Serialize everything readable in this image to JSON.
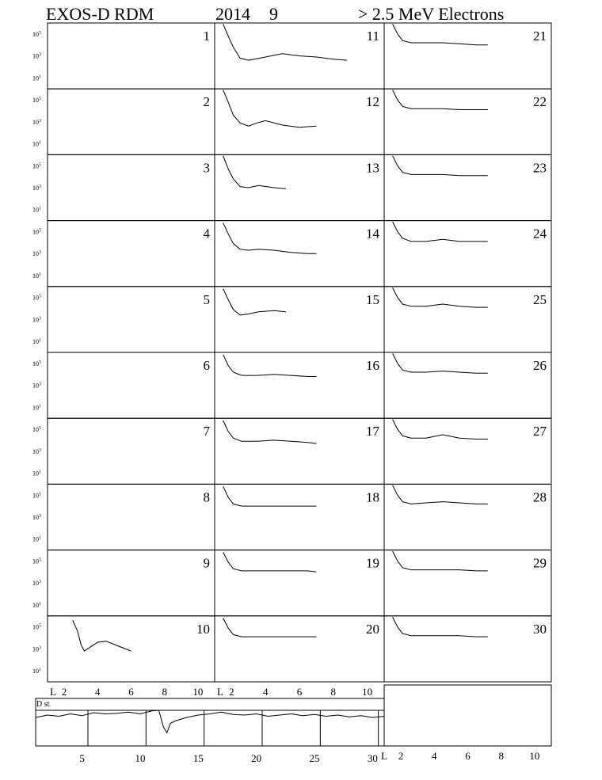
{
  "title": {
    "instrument": "EXOS-D RDM",
    "year": "2014",
    "month": "9",
    "particle": "> 2.5  MeV Electrons"
  },
  "chart_data": {
    "type": "line",
    "panel_grid": {
      "columns": 3,
      "rows": 10,
      "day_order": "column-major"
    },
    "days": [
      1,
      2,
      3,
      4,
      5,
      6,
      7,
      8,
      9,
      10,
      11,
      12,
      13,
      14,
      15,
      16,
      17,
      18,
      19,
      20,
      21,
      22,
      23,
      24,
      25,
      26,
      27,
      28,
      29,
      30
    ],
    "y_axis": {
      "scale": "log",
      "ticks": [
        {
          "base": "10",
          "exp": "5"
        },
        {
          "base": "10",
          "exp": "3"
        },
        {
          "base": "10",
          "exp": "1"
        }
      ],
      "ylim_exp": [
        0,
        6
      ]
    },
    "x_axis": {
      "label": "L",
      "ticks": [
        "2",
        "4",
        "6",
        "8",
        "10"
      ],
      "xlim": [
        1,
        11
      ]
    },
    "profiles": {
      "d1": [],
      "d2": [],
      "d3": [],
      "d4": [],
      "d5": [],
      "d6": [],
      "d7": [],
      "d8": [],
      "d9": [],
      "d10": [
        [
          2.5,
          5.6
        ],
        [
          2.8,
          4.6
        ],
        [
          3.0,
          3.4
        ],
        [
          3.2,
          2.8
        ],
        [
          3.6,
          3.2
        ],
        [
          4.0,
          3.6
        ],
        [
          4.5,
          3.7
        ],
        [
          5.0,
          3.4
        ],
        [
          5.5,
          3.1
        ],
        [
          6.0,
          2.8
        ]
      ],
      "d11": [
        [
          1.5,
          5.9
        ],
        [
          1.8,
          4.8
        ],
        [
          2.1,
          3.8
        ],
        [
          2.5,
          2.8
        ],
        [
          3.0,
          2.6
        ],
        [
          4.0,
          2.9
        ],
        [
          5.0,
          3.2
        ],
        [
          6.0,
          3.0
        ],
        [
          7.0,
          2.9
        ],
        [
          8.0,
          2.7
        ],
        [
          8.8,
          2.6
        ]
      ],
      "d12": [
        [
          1.5,
          5.9
        ],
        [
          1.8,
          4.8
        ],
        [
          2.1,
          3.6
        ],
        [
          2.5,
          2.9
        ],
        [
          3.0,
          2.6
        ],
        [
          3.5,
          2.9
        ],
        [
          4.0,
          3.1
        ],
        [
          5.0,
          2.7
        ],
        [
          6.0,
          2.5
        ],
        [
          7.0,
          2.6
        ]
      ],
      "d13": [
        [
          1.5,
          5.9
        ],
        [
          1.8,
          4.7
        ],
        [
          2.1,
          3.8
        ],
        [
          2.5,
          3.1
        ],
        [
          3.0,
          3.0
        ],
        [
          3.6,
          3.2
        ],
        [
          4.5,
          3.0
        ],
        [
          5.2,
          2.9
        ]
      ],
      "d14": [
        [
          1.5,
          5.8
        ],
        [
          1.8,
          4.8
        ],
        [
          2.1,
          3.9
        ],
        [
          2.5,
          3.4
        ],
        [
          3.0,
          3.3
        ],
        [
          3.6,
          3.4
        ],
        [
          4.5,
          3.3
        ],
        [
          5.5,
          3.1
        ],
        [
          6.5,
          3.0
        ],
        [
          7.0,
          3.0
        ]
      ],
      "d15": [
        [
          1.5,
          5.8
        ],
        [
          1.8,
          4.8
        ],
        [
          2.1,
          3.9
        ],
        [
          2.5,
          3.4
        ],
        [
          3.0,
          3.5
        ],
        [
          3.6,
          3.7
        ],
        [
          4.5,
          3.8
        ],
        [
          5.2,
          3.7
        ]
      ],
      "d16": [
        [
          1.5,
          5.8
        ],
        [
          1.8,
          4.8
        ],
        [
          2.1,
          4.2
        ],
        [
          2.6,
          3.9
        ],
        [
          3.5,
          3.9
        ],
        [
          4.5,
          4.0
        ],
        [
          5.5,
          3.9
        ],
        [
          6.5,
          3.8
        ],
        [
          7.0,
          3.8
        ]
      ],
      "d17": [
        [
          1.5,
          5.8
        ],
        [
          1.8,
          4.8
        ],
        [
          2.1,
          4.2
        ],
        [
          2.6,
          3.9
        ],
        [
          3.5,
          3.9
        ],
        [
          4.5,
          4.0
        ],
        [
          5.5,
          3.9
        ],
        [
          6.5,
          3.8
        ],
        [
          7.0,
          3.7
        ]
      ],
      "d18": [
        [
          1.5,
          5.8
        ],
        [
          1.8,
          4.8
        ],
        [
          2.1,
          4.2
        ],
        [
          2.6,
          4.0
        ],
        [
          3.5,
          4.0
        ],
        [
          4.5,
          4.0
        ],
        [
          5.5,
          4.0
        ],
        [
          6.5,
          4.0
        ],
        [
          7.0,
          4.0
        ]
      ],
      "d19": [
        [
          1.5,
          5.8
        ],
        [
          1.8,
          4.9
        ],
        [
          2.1,
          4.3
        ],
        [
          2.6,
          4.1
        ],
        [
          3.5,
          4.1
        ],
        [
          4.5,
          4.1
        ],
        [
          5.5,
          4.1
        ],
        [
          6.5,
          4.1
        ],
        [
          7.0,
          4.0
        ]
      ],
      "d20": [
        [
          1.5,
          5.8
        ],
        [
          1.8,
          4.9
        ],
        [
          2.1,
          4.3
        ],
        [
          2.6,
          4.1
        ],
        [
          3.5,
          4.1
        ],
        [
          4.5,
          4.1
        ],
        [
          5.5,
          4.1
        ],
        [
          6.5,
          4.1
        ],
        [
          7.0,
          4.1
        ]
      ],
      "d21": [
        [
          1.5,
          5.9
        ],
        [
          1.8,
          5.0
        ],
        [
          2.1,
          4.4
        ],
        [
          2.6,
          4.2
        ],
        [
          3.5,
          4.2
        ],
        [
          4.5,
          4.2
        ],
        [
          5.5,
          4.1
        ],
        [
          6.5,
          4.0
        ],
        [
          7.2,
          4.0
        ]
      ],
      "d22": [
        [
          1.5,
          5.9
        ],
        [
          1.8,
          5.0
        ],
        [
          2.1,
          4.4
        ],
        [
          2.6,
          4.2
        ],
        [
          3.5,
          4.2
        ],
        [
          4.5,
          4.2
        ],
        [
          5.5,
          4.1
        ],
        [
          6.5,
          4.1
        ],
        [
          7.2,
          4.1
        ]
      ],
      "d23": [
        [
          1.5,
          5.9
        ],
        [
          1.8,
          5.0
        ],
        [
          2.1,
          4.4
        ],
        [
          2.6,
          4.2
        ],
        [
          3.5,
          4.2
        ],
        [
          4.5,
          4.2
        ],
        [
          5.5,
          4.1
        ],
        [
          6.5,
          4.1
        ],
        [
          7.2,
          4.1
        ]
      ],
      "d24": [
        [
          1.5,
          5.9
        ],
        [
          1.8,
          5.0
        ],
        [
          2.1,
          4.4
        ],
        [
          2.6,
          4.1
        ],
        [
          3.5,
          4.1
        ],
        [
          4.5,
          4.3
        ],
        [
          5.5,
          4.1
        ],
        [
          6.5,
          4.1
        ],
        [
          7.2,
          4.1
        ]
      ],
      "d25": [
        [
          1.5,
          5.9
        ],
        [
          1.8,
          5.0
        ],
        [
          2.1,
          4.4
        ],
        [
          2.6,
          4.2
        ],
        [
          3.5,
          4.2
        ],
        [
          4.5,
          4.4
        ],
        [
          5.5,
          4.2
        ],
        [
          6.5,
          4.1
        ],
        [
          7.2,
          4.1
        ]
      ],
      "d26": [
        [
          1.5,
          5.9
        ],
        [
          1.8,
          5.0
        ],
        [
          2.1,
          4.4
        ],
        [
          2.6,
          4.2
        ],
        [
          3.5,
          4.2
        ],
        [
          4.5,
          4.3
        ],
        [
          5.5,
          4.2
        ],
        [
          6.5,
          4.1
        ],
        [
          7.2,
          4.1
        ]
      ],
      "d27": [
        [
          1.5,
          5.9
        ],
        [
          1.8,
          5.0
        ],
        [
          2.1,
          4.4
        ],
        [
          2.6,
          4.2
        ],
        [
          3.5,
          4.2
        ],
        [
          4.5,
          4.5
        ],
        [
          5.5,
          4.2
        ],
        [
          6.5,
          4.1
        ],
        [
          7.2,
          4.1
        ]
      ],
      "d28": [
        [
          1.5,
          5.9
        ],
        [
          1.8,
          5.0
        ],
        [
          2.1,
          4.4
        ],
        [
          2.6,
          4.2
        ],
        [
          3.5,
          4.3
        ],
        [
          4.5,
          4.4
        ],
        [
          5.5,
          4.3
        ],
        [
          6.5,
          4.2
        ],
        [
          7.2,
          4.2
        ]
      ],
      "d29": [
        [
          1.5,
          5.9
        ],
        [
          1.8,
          5.0
        ],
        [
          2.1,
          4.4
        ],
        [
          2.6,
          4.2
        ],
        [
          3.5,
          4.2
        ],
        [
          4.5,
          4.2
        ],
        [
          5.5,
          4.2
        ],
        [
          6.5,
          4.1
        ],
        [
          7.2,
          4.1
        ]
      ],
      "d30": [
        [
          1.5,
          5.9
        ],
        [
          1.8,
          5.0
        ],
        [
          2.1,
          4.4
        ],
        [
          2.6,
          4.2
        ],
        [
          3.5,
          4.2
        ],
        [
          4.5,
          4.2
        ],
        [
          5.5,
          4.2
        ],
        [
          6.5,
          4.1
        ],
        [
          7.2,
          4.1
        ]
      ]
    },
    "dst": {
      "label": "D st",
      "x_ticks": [
        "5",
        "10",
        "15",
        "20",
        "25",
        "30"
      ],
      "xlim": [
        1,
        31
      ],
      "ylim": [
        -60,
        20
      ],
      "points": [
        [
          1,
          -12
        ],
        [
          2,
          -8
        ],
        [
          3,
          -10
        ],
        [
          4,
          -6
        ],
        [
          5,
          -9
        ],
        [
          6,
          -4
        ],
        [
          7,
          -6
        ],
        [
          8,
          -5
        ],
        [
          9,
          -3
        ],
        [
          10,
          -6
        ],
        [
          11,
          -1
        ],
        [
          11.6,
          0
        ],
        [
          12,
          -28
        ],
        [
          12.3,
          -38
        ],
        [
          12.6,
          -22
        ],
        [
          13,
          -18
        ],
        [
          14,
          -12
        ],
        [
          15,
          -8
        ],
        [
          16,
          -6
        ],
        [
          17,
          -3
        ],
        [
          18,
          -7
        ],
        [
          19,
          -8
        ],
        [
          20,
          -6
        ],
        [
          21,
          -10
        ],
        [
          22,
          -8
        ],
        [
          23,
          -6
        ],
        [
          24,
          -9
        ],
        [
          25,
          -7
        ],
        [
          26,
          -10
        ],
        [
          27,
          -8
        ],
        [
          28,
          -11
        ],
        [
          29,
          -9
        ],
        [
          30,
          -12
        ],
        [
          31,
          -10
        ]
      ]
    }
  }
}
